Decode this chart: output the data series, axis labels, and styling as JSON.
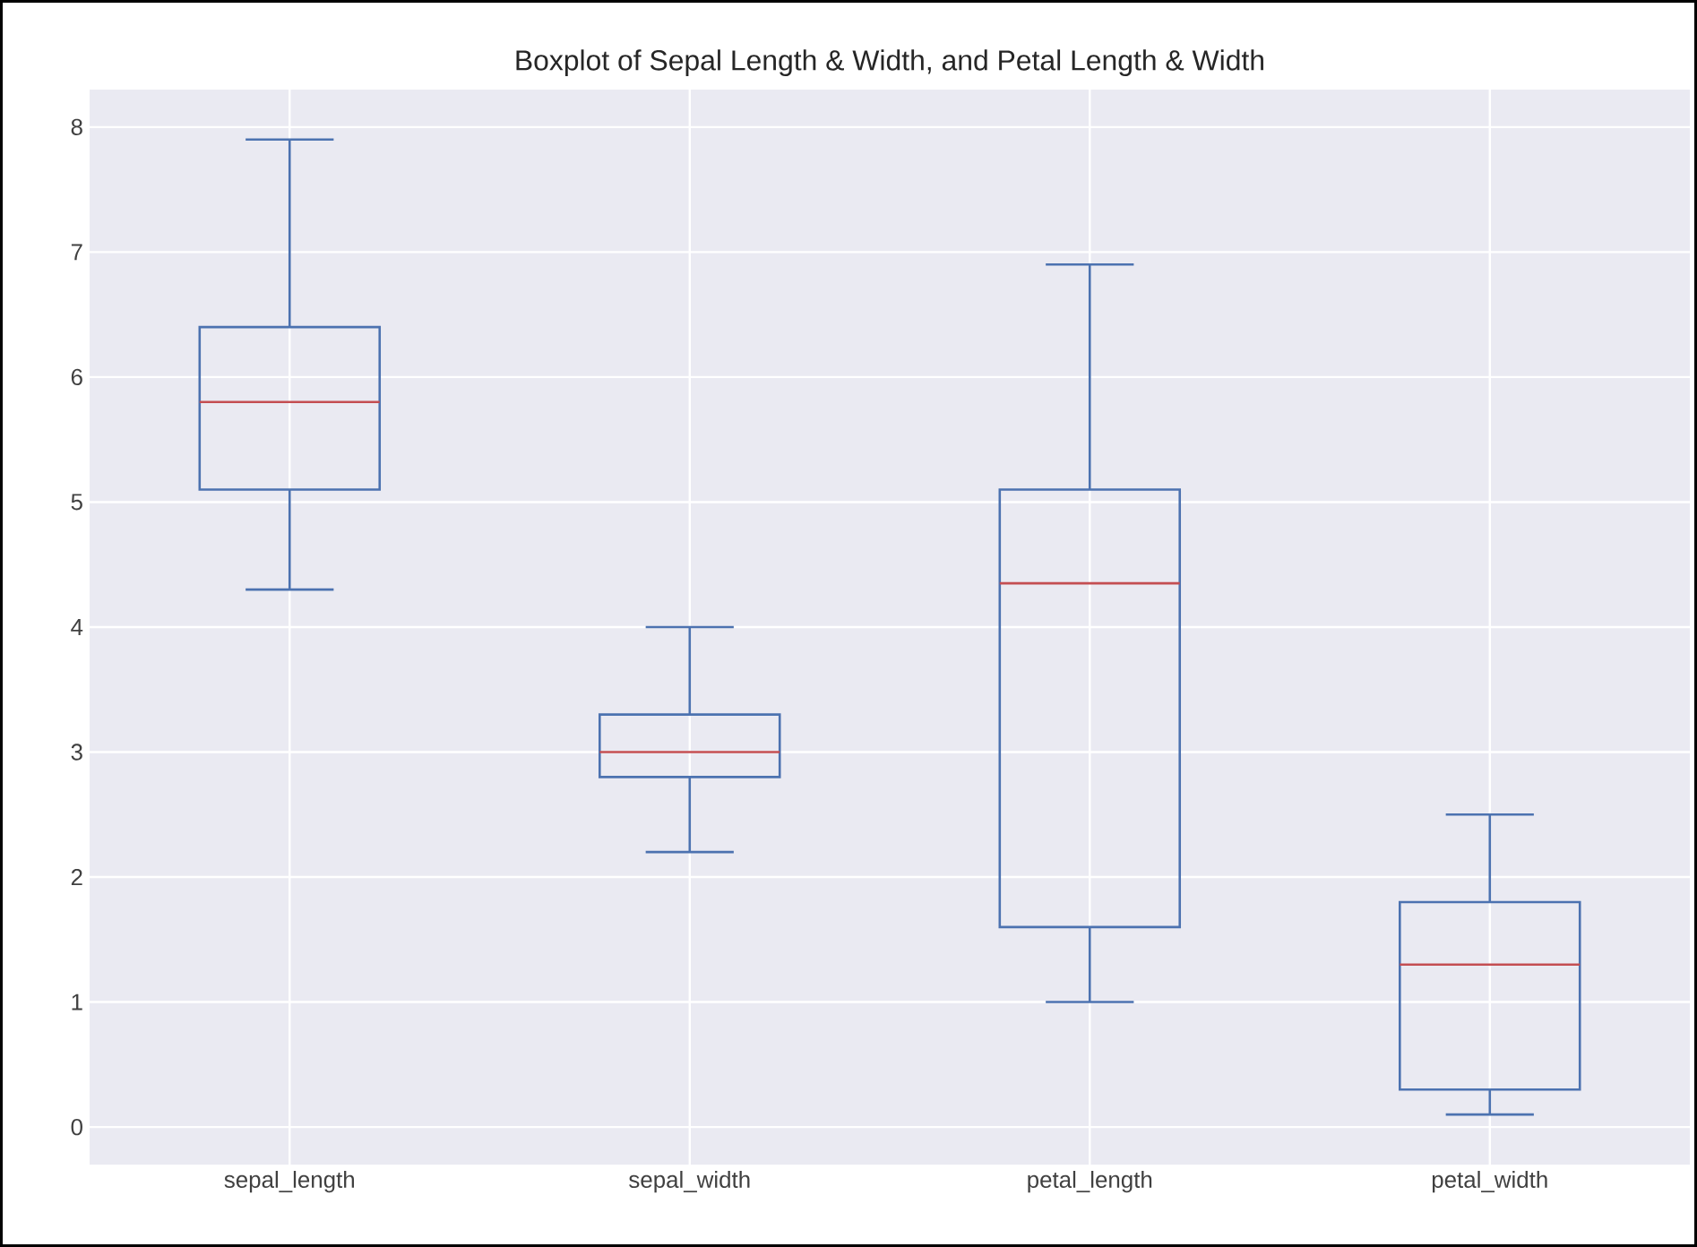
{
  "chart_data": {
    "type": "box",
    "title": "Boxplot of Sepal Length & Width, and Petal Length & Width",
    "categories": [
      "sepal_length",
      "sepal_width",
      "petal_length",
      "petal_width"
    ],
    "series": [
      {
        "color": "#4c72b0",
        "boxes": [
          {
            "low": 4.3,
            "q1": 5.1,
            "median": 5.8,
            "q3": 6.4,
            "high": 7.9
          },
          {
            "low": 2.2,
            "q1": 2.8,
            "median": 3.0,
            "q3": 3.3,
            "high": 4.0
          },
          {
            "low": 1.0,
            "q1": 1.6,
            "median": 4.35,
            "q3": 5.1,
            "high": 6.9
          },
          {
            "low": 0.1,
            "q1": 0.3,
            "median": 1.3,
            "q3": 1.8,
            "high": 2.5
          }
        ]
      }
    ],
    "ylim": [
      -0.3,
      8.3
    ],
    "yticks": [
      0,
      1,
      2,
      3,
      4,
      5,
      6,
      7,
      8
    ],
    "grid": true
  }
}
